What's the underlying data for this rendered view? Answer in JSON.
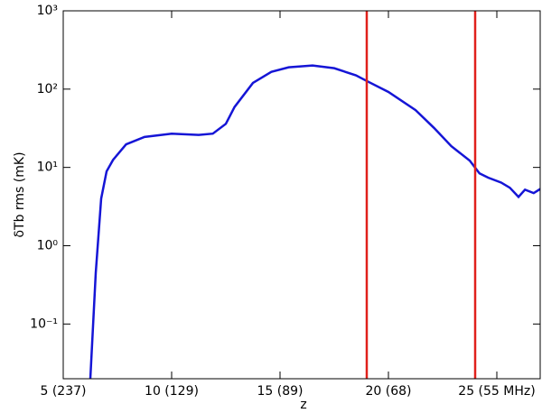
{
  "chart_data": {
    "type": "line",
    "x_label": "z",
    "y_label": "δTb rms (mK)",
    "log_y": true,
    "xlim": [
      5,
      27
    ],
    "ylim": [
      0.02,
      1000
    ],
    "xticks": [
      {
        "value": 5,
        "label": "5 (237)"
      },
      {
        "value": 10,
        "label": "10 (129)"
      },
      {
        "value": 15,
        "label": "15 (89)"
      },
      {
        "value": 20,
        "label": "20 (68)"
      },
      {
        "value": 25,
        "label": "25 (55 MHz)"
      }
    ],
    "yticks": [
      {
        "value": 0.1,
        "label": "10⁻¹"
      },
      {
        "value": 1,
        "label": "10⁰"
      },
      {
        "value": 10,
        "label": "10¹"
      },
      {
        "value": 100,
        "label": "10²"
      },
      {
        "value": 1000,
        "label": "10³"
      }
    ],
    "vlines": [
      19,
      24
    ],
    "vline_color": "#e0201b",
    "series": [
      {
        "color": "#1515d6",
        "x": [
          6.25,
          6.5,
          6.75,
          7.0,
          7.3,
          7.9,
          8.75,
          10,
          11.25,
          11.9,
          12.5,
          12.9,
          13.75,
          14.6,
          15.4,
          16.5,
          17.5,
          18.5,
          19,
          20,
          21.25,
          22.1,
          22.9,
          23.75,
          24.2,
          24.6,
          25.2,
          25.6,
          26.0,
          26.3,
          26.7,
          27
        ],
        "values": [
          0.02,
          0.45,
          4.0,
          8.9,
          12.5,
          19.7,
          24.5,
          27,
          26,
          27,
          36,
          59,
          120,
          166,
          190,
          200,
          185,
          150,
          127,
          92,
          54,
          32,
          18.7,
          12.2,
          8.4,
          7.4,
          6.4,
          5.5,
          4.2,
          5.2,
          4.7,
          5.3
        ]
      }
    ]
  }
}
